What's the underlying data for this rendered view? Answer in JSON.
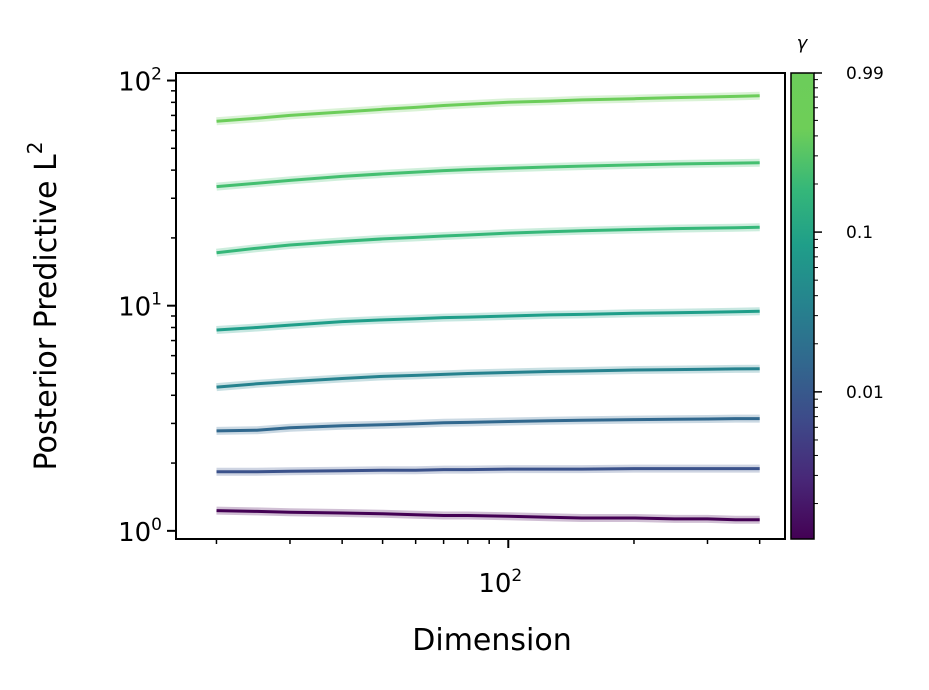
{
  "chart_data": {
    "type": "line",
    "xlabel": "Dimension",
    "ylabel_main": "Posterior Predictive L",
    "ylabel_sup": "2",
    "xscale": "log",
    "yscale": "log",
    "xlim": [
      16,
      460
    ],
    "ylim": [
      0.92,
      108
    ],
    "x_tick_label": {
      "base": "10",
      "exp": "2",
      "value": 100
    },
    "x_minor_ticks": [
      20,
      30,
      40,
      50,
      60,
      70,
      80,
      90,
      200,
      300,
      400
    ],
    "y_tick_labels": [
      {
        "base": "10",
        "exp": "0",
        "value": 1
      },
      {
        "base": "10",
        "exp": "1",
        "value": 10
      },
      {
        "base": "10",
        "exp": "2",
        "value": 100
      }
    ],
    "grid": false,
    "colorbar": {
      "title": "γ",
      "scale": "log",
      "colormap": "viridis",
      "range": [
        0.0012,
        0.99
      ],
      "ticks": [
        {
          "label": "0.99",
          "value": 0.99
        },
        {
          "label": "0.1",
          "value": 0.1
        },
        {
          "label": "0.01",
          "value": 0.01
        }
      ]
    },
    "x": [
      20,
      25,
      30,
      40,
      50,
      60,
      70,
      80,
      100,
      125,
      150,
      200,
      250,
      300,
      350,
      400
    ],
    "series": [
      {
        "gamma": 0.0012,
        "color": "#440154",
        "values": [
          1.23,
          1.22,
          1.21,
          1.2,
          1.19,
          1.18,
          1.17,
          1.17,
          1.16,
          1.15,
          1.14,
          1.14,
          1.13,
          1.13,
          1.12,
          1.12
        ]
      },
      {
        "gamma": 0.0025,
        "color": "#3b528b",
        "values": [
          1.83,
          1.83,
          1.84,
          1.85,
          1.86,
          1.86,
          1.87,
          1.87,
          1.88,
          1.88,
          1.88,
          1.89,
          1.89,
          1.89,
          1.89,
          1.89
        ]
      },
      {
        "gamma": 0.005,
        "color": "#31688e",
        "values": [
          2.78,
          2.8,
          2.87,
          2.93,
          2.96,
          2.99,
          3.02,
          3.03,
          3.06,
          3.08,
          3.1,
          3.12,
          3.13,
          3.14,
          3.15,
          3.15
        ]
      },
      {
        "gamma": 0.01,
        "color": "#26828e",
        "values": [
          4.35,
          4.5,
          4.6,
          4.75,
          4.85,
          4.9,
          4.95,
          5.0,
          5.05,
          5.1,
          5.13,
          5.18,
          5.2,
          5.22,
          5.24,
          5.25
        ]
      },
      {
        "gamma": 0.02,
        "color": "#1f9e89",
        "values": [
          7.8,
          8.0,
          8.2,
          8.5,
          8.65,
          8.75,
          8.85,
          8.9,
          9.0,
          9.1,
          9.15,
          9.25,
          9.3,
          9.35,
          9.4,
          9.45
        ]
      },
      {
        "gamma": 0.05,
        "color": "#35b779",
        "values": [
          17.2,
          18.0,
          18.6,
          19.3,
          19.8,
          20.1,
          20.4,
          20.6,
          21.0,
          21.3,
          21.5,
          21.8,
          22.0,
          22.1,
          22.2,
          22.3
        ]
      },
      {
        "gamma": 0.2,
        "color": "#44bf70",
        "values": [
          33.8,
          35.0,
          36.0,
          37.5,
          38.5,
          39.2,
          39.8,
          40.2,
          40.8,
          41.3,
          41.7,
          42.2,
          42.6,
          42.8,
          43.0,
          43.1
        ]
      },
      {
        "gamma": 0.99,
        "color": "#6ccd5a",
        "values": [
          66.0,
          68.0,
          70.0,
          72.5,
          74.5,
          76.0,
          77.5,
          78.5,
          80.0,
          81.0,
          82.0,
          83.0,
          84.0,
          84.5,
          85.0,
          85.5
        ]
      }
    ]
  }
}
